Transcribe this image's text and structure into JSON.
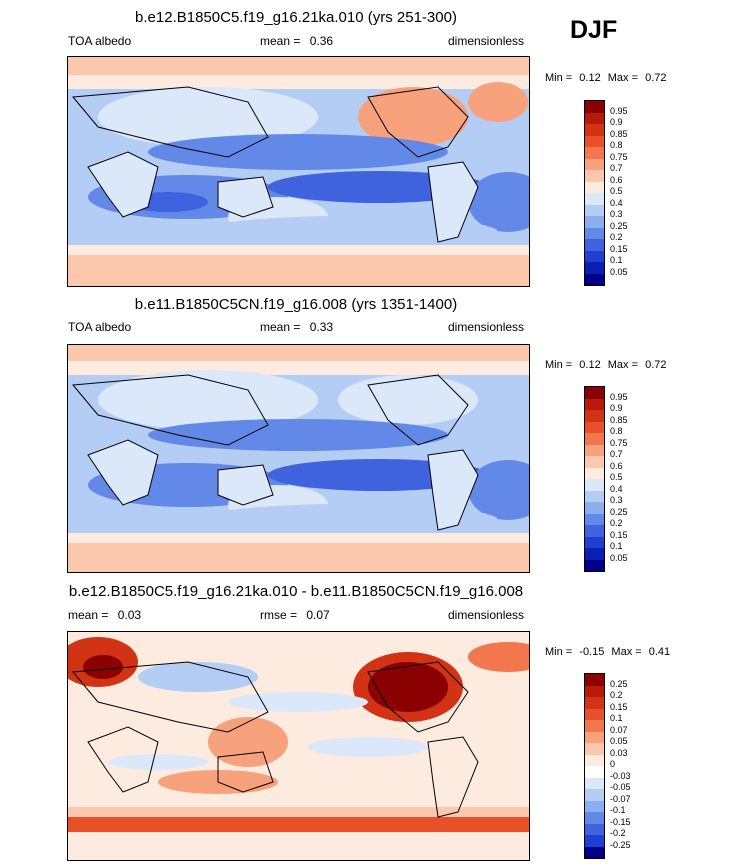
{
  "season": "DJF",
  "panels": [
    {
      "title": "b.e12.B1850C5.f19_g16.21ka.010 (yrs 251-300)",
      "left_label": "TOA albedo",
      "mean_label": "mean =",
      "mean_value": "0.36",
      "units": "dimensionless",
      "min_label": "Min =",
      "min_value": "0.12",
      "max_label": "Max =",
      "max_value": "0.72",
      "levels": [
        "0.95",
        "0.9",
        "0.85",
        "0.8",
        "0.75",
        "0.7",
        "0.6",
        "0.5",
        "0.4",
        "0.3",
        "0.25",
        "0.2",
        "0.15",
        "0.1",
        "0.05"
      ],
      "colors": [
        "#8b0000",
        "#b51a0b",
        "#d23315",
        "#e8502a",
        "#f2774f",
        "#f7a17d",
        "#fbc8ad",
        "#fdebdf",
        "#dbe8f9",
        "#b4cdf4",
        "#8aaeef",
        "#6389e8",
        "#3f63de",
        "#1f3fd1",
        "#0b1fb4",
        "#00008b"
      ]
    },
    {
      "title": "b.e11.B1850C5CN.f19_g16.008 (yrs 1351-1400)",
      "left_label": "TOA albedo",
      "mean_label": "mean =",
      "mean_value": "0.33",
      "units": "dimensionless",
      "min_label": "Min =",
      "min_value": "0.12",
      "max_label": "Max =",
      "max_value": "0.72",
      "levels": [
        "0.95",
        "0.9",
        "0.85",
        "0.8",
        "0.75",
        "0.7",
        "0.6",
        "0.5",
        "0.4",
        "0.3",
        "0.25",
        "0.2",
        "0.15",
        "0.1",
        "0.05"
      ],
      "colors": [
        "#8b0000",
        "#b51a0b",
        "#d23315",
        "#e8502a",
        "#f2774f",
        "#f7a17d",
        "#fbc8ad",
        "#fdebdf",
        "#dbe8f9",
        "#b4cdf4",
        "#8aaeef",
        "#6389e8",
        "#3f63de",
        "#1f3fd1",
        "#0b1fb4",
        "#00008b"
      ]
    },
    {
      "title": "b.e12.B1850C5.f19_g16.21ka.010 - b.e11.B1850C5CN.f19_g16.008",
      "left_label": "mean =",
      "left_value": "0.03",
      "mean_label": "rmse =",
      "mean_value": "0.07",
      "units": "dimensionless",
      "min_label": "Min =",
      "min_value": "-0.15",
      "max_label": "Max =",
      "max_value": "0.41",
      "levels": [
        "0.25",
        "0.2",
        "0.15",
        "0.1",
        "0.07",
        "0.05",
        "0.03",
        "0",
        "-0.03",
        "-0.05",
        "-0.07",
        "-0.1",
        "-0.15",
        "-0.2",
        "-0.25"
      ],
      "colors": [
        "#8b0000",
        "#b51a0b",
        "#d23315",
        "#e8502a",
        "#f2774f",
        "#f7a17d",
        "#fbc8ad",
        "#fdebdf",
        "#ffffff",
        "#dbe8f9",
        "#b4cdf4",
        "#8aaeef",
        "#6389e8",
        "#3f63de",
        "#1f3fd1",
        "#00008b"
      ]
    }
  ]
}
